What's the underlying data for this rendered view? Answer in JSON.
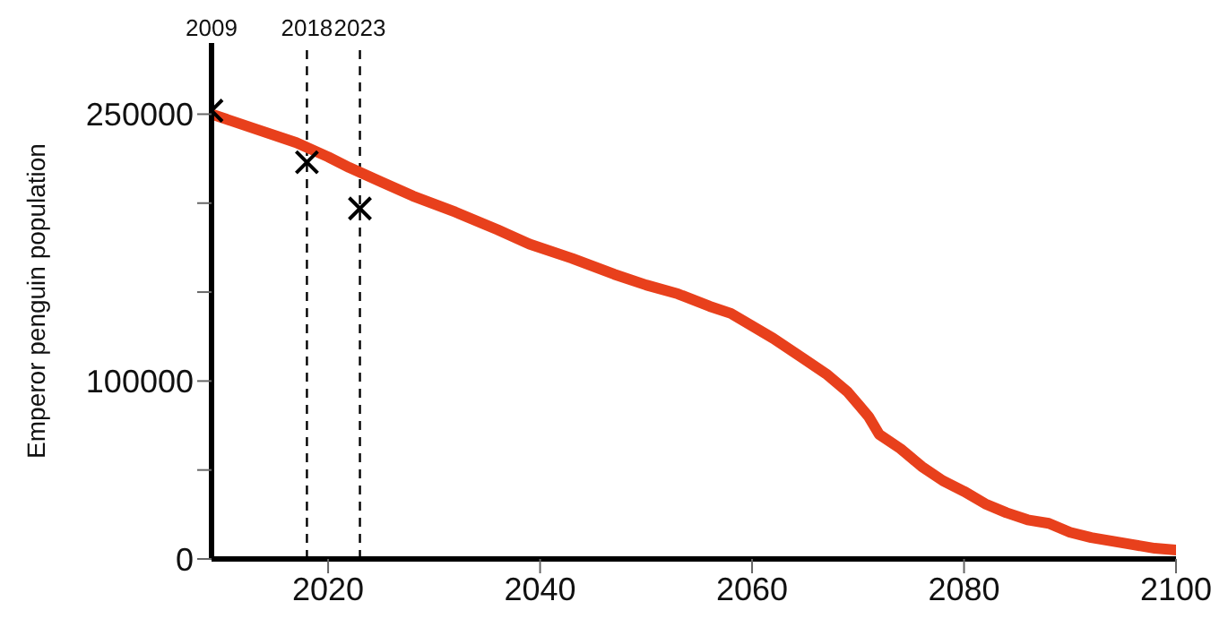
{
  "chart_data": {
    "type": "line",
    "ylabel": "Emperor penguin population",
    "xlim": [
      2009,
      2100
    ],
    "xticks": [
      2020,
      2040,
      2060,
      2080,
      2100
    ],
    "ylim": [
      0,
      290000
    ],
    "yticks": [
      0,
      {
        "value": 50000,
        "label": null
      },
      100000,
      {
        "value": 150000,
        "label": null
      },
      {
        "value": 200000,
        "label": null
      },
      250000
    ],
    "grid": false,
    "series": [
      {
        "color": "#e8401c",
        "marker": "none",
        "line_style": "solid",
        "x": [
          2009,
          2013,
          2017,
          2020,
          2022,
          2025,
          2028,
          2032,
          2036,
          2039,
          2043,
          2047,
          2050,
          2053,
          2056,
          2058,
          2062,
          2065,
          2067,
          2069,
          2070,
          2071,
          2072,
          2074,
          2076,
          2078,
          2080,
          2082,
          2084,
          2086,
          2088,
          2090,
          2092,
          2094,
          2096,
          2098,
          2100
        ],
        "values": [
          250000,
          242000,
          234000,
          226000,
          220000,
          212000,
          204000,
          195000,
          185000,
          177000,
          169000,
          160000,
          154000,
          149000,
          142000,
          138000,
          124000,
          112000,
          104000,
          94000,
          87000,
          80000,
          70000,
          62000,
          52000,
          44000,
          38000,
          31000,
          26000,
          22000,
          20000,
          15000,
          12000,
          10000,
          8000,
          6000,
          5000
        ]
      },
      {
        "type": "scatter",
        "color": "#000000",
        "marker": "cross",
        "x": [
          2009,
          2018,
          2023
        ],
        "values": [
          252000,
          223000,
          197000
        ]
      }
    ],
    "annotations": [
      "2009"
    ],
    "ref_lines": [
      {
        "axis": "x",
        "value": 2018,
        "label": "2018",
        "color": "#000000",
        "line_style": "dashed"
      },
      {
        "axis": "x",
        "value": 2023,
        "label": "2023",
        "color": "#000000",
        "line_style": "dashed"
      }
    ]
  }
}
